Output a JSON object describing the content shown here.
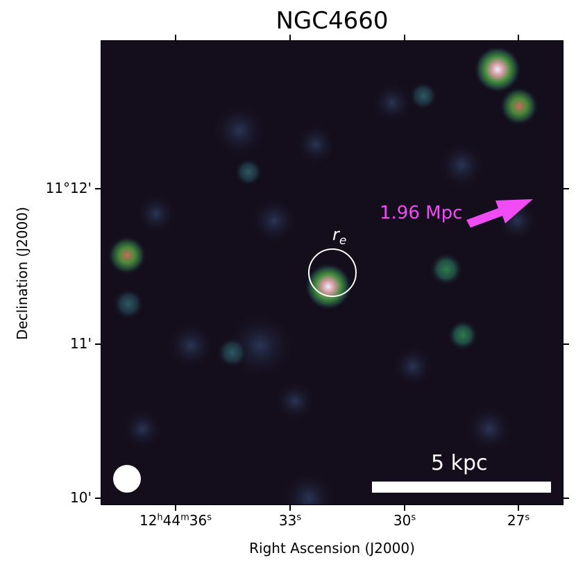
{
  "title": "NGC4660",
  "axes": {
    "xlabel": "Right Ascension (J2000)",
    "ylabel": "Declination (J2000)",
    "yticks": [
      "11°12'",
      "11'",
      "10'"
    ],
    "xticks": [
      {
        "h": "12",
        "h_unit": "h",
        "m": "44",
        "m_unit": "m",
        "s": "36",
        "s_unit": "s"
      },
      {
        "s": "33",
        "s_unit": "s"
      },
      {
        "s": "30",
        "s_unit": "s"
      },
      {
        "s": "27",
        "s_unit": "s"
      }
    ]
  },
  "annotations": {
    "distance_label": "1.96 Mpc",
    "radius_label_main": "r",
    "radius_label_sub": "e",
    "scalebar_label": "5 kpc"
  },
  "colors": {
    "background": "#140e1c",
    "arrow": "#f04cf5",
    "scalebar": "#ffffff",
    "beam": "#ffffff",
    "circle": "#ffffff"
  }
}
